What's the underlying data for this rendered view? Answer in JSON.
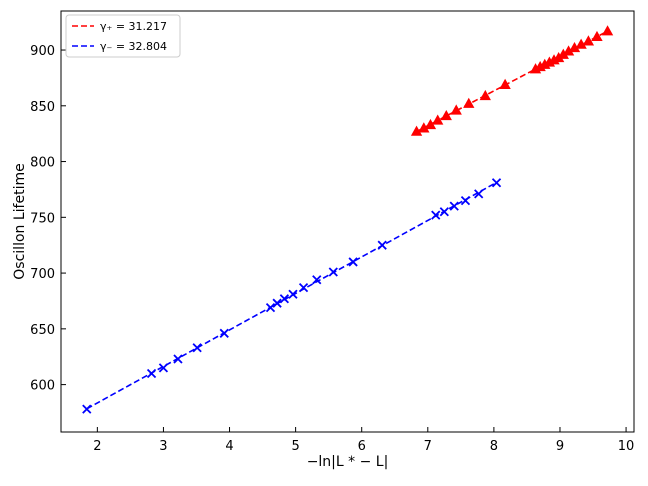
{
  "chart_data": {
    "type": "scatter",
    "xlabel": "−ln|L * − L|",
    "ylabel": "Oscillon Lifetime",
    "xlim": [
      1.45,
      10.12
    ],
    "ylim": [
      557.5,
      935
    ],
    "xticks": [
      2,
      3,
      4,
      5,
      6,
      7,
      8,
      9,
      10
    ],
    "yticks": [
      600,
      650,
      700,
      750,
      800,
      850,
      900
    ],
    "grid": false,
    "legend_position": "top-left",
    "series": [
      {
        "name": "γ₊ = 31.217",
        "color": "#ff0000",
        "marker": "triangle",
        "line": "dashed",
        "x": [
          6.83,
          6.94,
          7.04,
          7.15,
          7.28,
          7.43,
          7.62,
          7.87,
          8.17,
          8.63,
          8.7,
          8.77,
          8.84,
          8.91,
          8.98,
          9.05,
          9.13,
          9.22,
          9.32,
          9.43,
          9.56,
          9.72
        ],
        "y": [
          827,
          830,
          833,
          837,
          841,
          846,
          852,
          859,
          869,
          883,
          885,
          887,
          889,
          891,
          893,
          896,
          899,
          902,
          905,
          908,
          912,
          917
        ]
      },
      {
        "name": "γ₋ = 32.804",
        "color": "#0000ff",
        "marker": "x",
        "line": "dashed",
        "x": [
          1.84,
          2.82,
          3.0,
          3.22,
          3.51,
          3.92,
          4.62,
          4.72,
          4.83,
          4.96,
          5.12,
          5.32,
          5.57,
          5.87,
          6.31,
          7.12,
          7.25,
          7.4,
          7.57,
          7.77,
          8.04
        ],
        "y": [
          578,
          610,
          615,
          623,
          633,
          646,
          669,
          673,
          677,
          681,
          687,
          694,
          701,
          710,
          725,
          752,
          755,
          760,
          765,
          771,
          781
        ]
      }
    ]
  }
}
